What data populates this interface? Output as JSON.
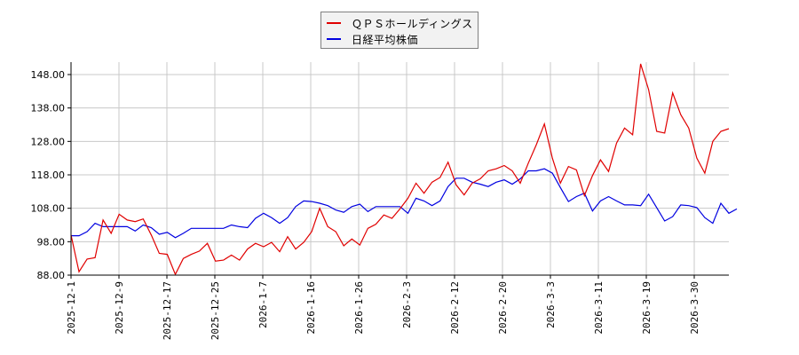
{
  "chart_data": {
    "type": "line",
    "title": "",
    "xlabel": "",
    "ylabel": "",
    "ylim": [
      88,
      152
    ],
    "grid": true,
    "legend_position": "top-center",
    "yticks": [
      "88.00",
      "98.00",
      "108.00",
      "118.00",
      "128.00",
      "138.00",
      "148.00"
    ],
    "xticks": [
      "2025-12-1",
      "2025-12-9",
      "2025-12-17",
      "2025-12-25",
      "2026-1-7",
      "2026-1-16",
      "2026-1-26",
      "2026-2-3",
      "2026-2-12",
      "2026-2-20",
      "2026-3-3",
      "2026-3-11",
      "2026-3-19",
      "2026-3-30"
    ],
    "series": [
      {
        "name": "ＱＰＳホールディングス",
        "color": "#e00000",
        "values": [
          100.0,
          89.0,
          92.8,
          93.2,
          104.5,
          100.5,
          106.2,
          104.5,
          104.0,
          104.8,
          100.0,
          94.5,
          94.2,
          88.2,
          93.0,
          94.2,
          95.2,
          97.5,
          92.2,
          92.5,
          94.0,
          92.5,
          95.8,
          97.5,
          96.5,
          97.8,
          95.0,
          99.5,
          95.8,
          97.8,
          101.0,
          108.0,
          102.5,
          101.0,
          96.8,
          98.8,
          97.0,
          102.0,
          103.2,
          106.0,
          105.0,
          107.8,
          111.0,
          115.5,
          112.5,
          115.8,
          117.2,
          121.8,
          115.0,
          112.0,
          115.5,
          116.8,
          119.2,
          119.8,
          120.8,
          119.2,
          115.5,
          121.5,
          127.0,
          133.2,
          123.0,
          115.5,
          120.5,
          119.5,
          111.8,
          117.8,
          122.5,
          119.0,
          127.5,
          132.0,
          130.0,
          151.2,
          143.5,
          131.0,
          130.5,
          142.5,
          136.0,
          132.0,
          123.0,
          118.5,
          128.0,
          131.0,
          131.8
        ]
      },
      {
        "name": "日経平均株価",
        "color": "#0000e0",
        "values": [
          99.8,
          99.8,
          101.0,
          103.5,
          102.5,
          102.5,
          102.5,
          102.5,
          101.2,
          103.0,
          102.2,
          100.2,
          100.8,
          99.2,
          100.5,
          102.0,
          102.0,
          102.0,
          102.0,
          102.0,
          103.0,
          102.5,
          102.2,
          105.0,
          106.5,
          105.2,
          103.5,
          105.2,
          108.5,
          110.2,
          110.0,
          109.5,
          108.8,
          107.5,
          106.8,
          108.5,
          109.2,
          107.0,
          108.5,
          108.5,
          108.5,
          108.5,
          106.5,
          111.0,
          110.2,
          108.8,
          110.2,
          114.5,
          117.0,
          117.0,
          115.8,
          115.2,
          114.5,
          115.8,
          116.5,
          115.2,
          116.8,
          119.2,
          119.2,
          119.8,
          118.5,
          114.2,
          110.0,
          111.5,
          112.5,
          107.2,
          110.2,
          111.5,
          110.2,
          109.0,
          109.0,
          108.8,
          112.2,
          108.2,
          104.2,
          105.5,
          109.0,
          108.8,
          108.2,
          105.2,
          103.5,
          109.5,
          106.5,
          107.8
        ]
      }
    ]
  },
  "legend": {
    "items": [
      {
        "label": "ＱＰＳホールディングス",
        "color": "#e00000"
      },
      {
        "label": "日経平均株価",
        "color": "#0000e0"
      }
    ]
  }
}
